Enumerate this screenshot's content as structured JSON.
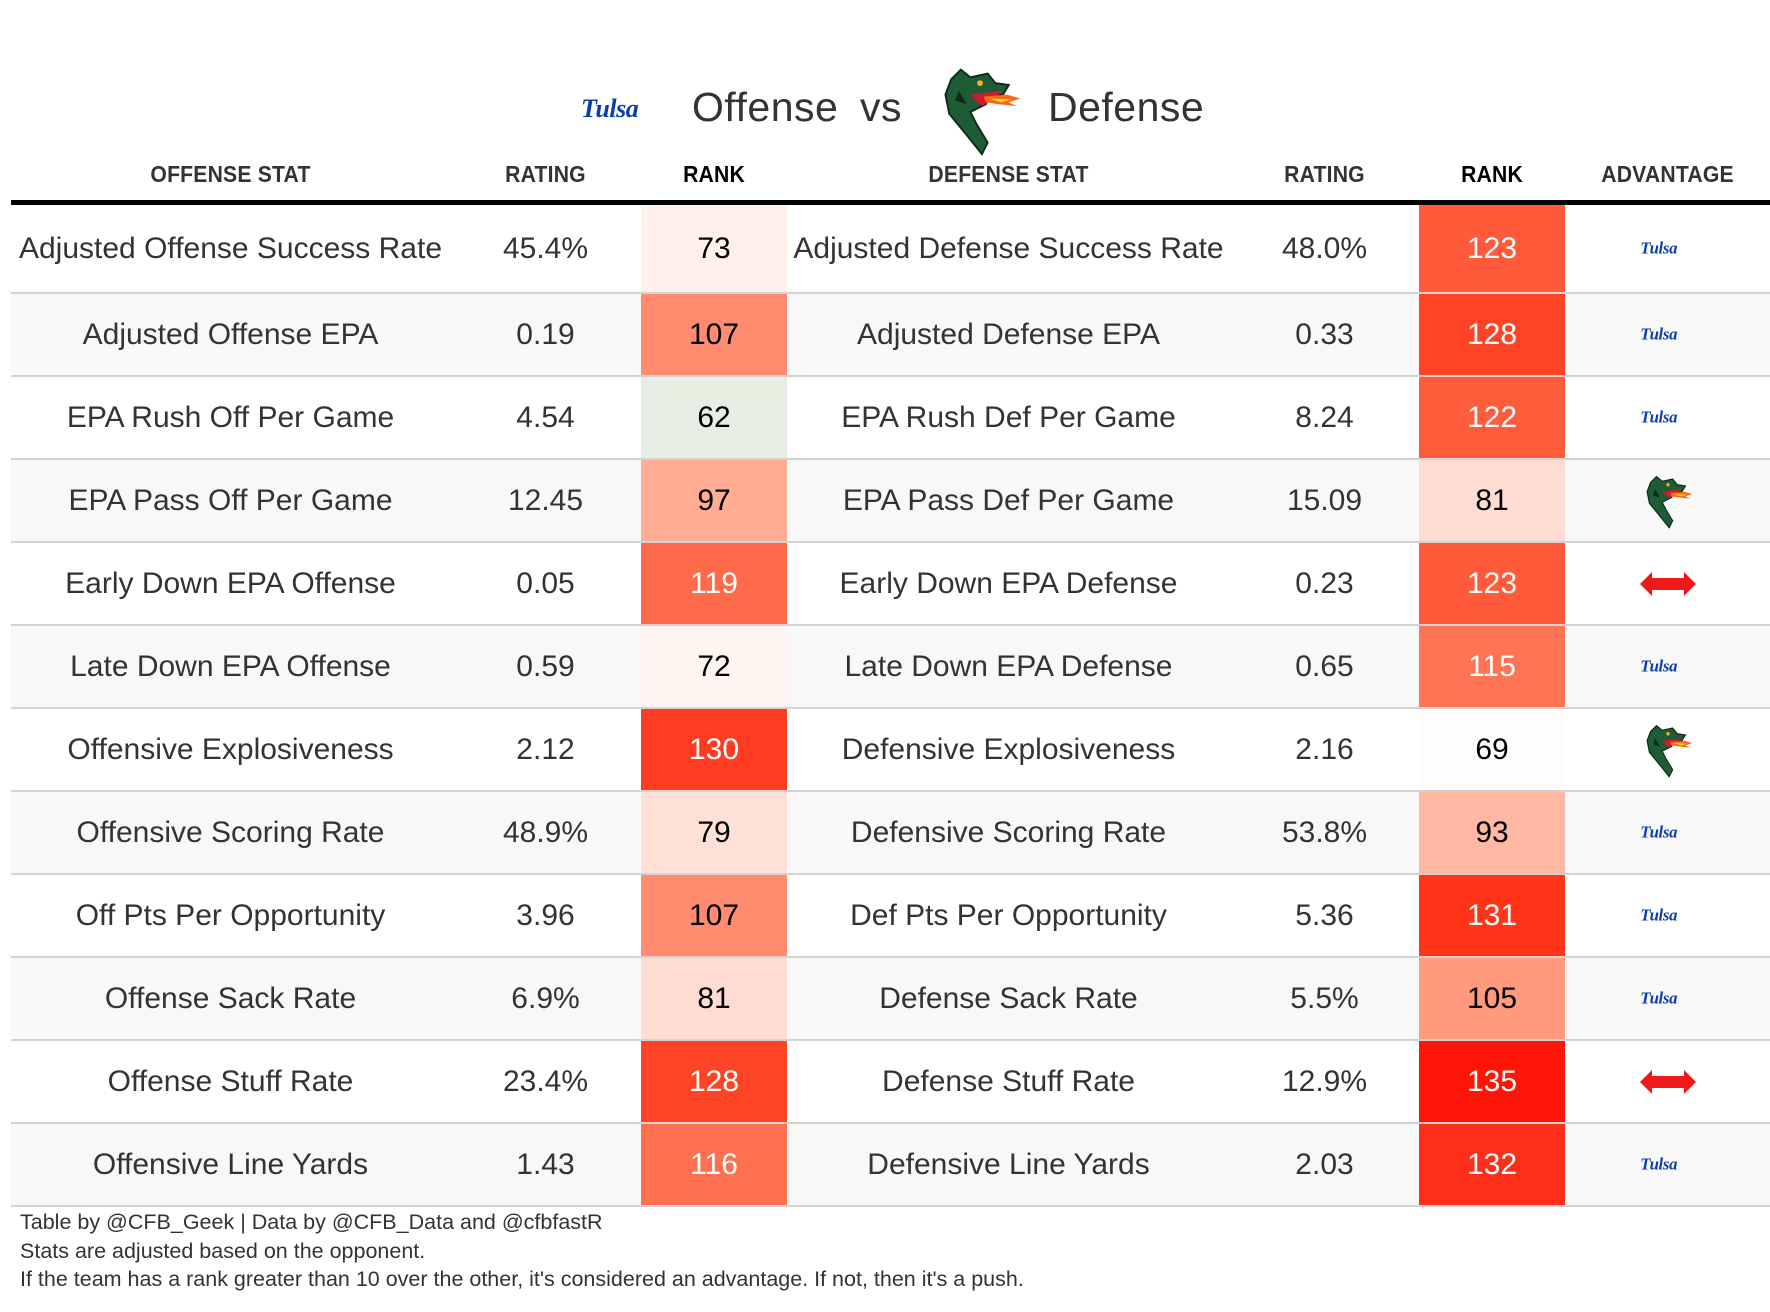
{
  "title": {
    "offense_team": "Tulsa",
    "offense_word": "Offense",
    "vs_word": "vs",
    "defense_team": "UAB",
    "defense_word": "Defense"
  },
  "headers": {
    "offense_stat": "OFFENSE STAT",
    "offense_rating": "RATING",
    "offense_rank": "RANK",
    "defense_stat": "DEFENSE STAT",
    "defense_rating": "RATING",
    "defense_rank": "RANK",
    "advantage": "ADVANTAGE"
  },
  "rows": [
    {
      "ostat": "Adjusted Offense Success Rate",
      "orating": "45.4%",
      "orank": "73",
      "orank_color": "#fff0ec",
      "orank_text": "light",
      "dstat": "Adjusted Defense Success Rate",
      "drating": "48.0%",
      "drank": "123",
      "drank_color": "#ff5a3a",
      "drank_text": "dark",
      "advantage": "tulsa"
    },
    {
      "ostat": "Adjusted Offense EPA",
      "orating": "0.19",
      "orank": "107",
      "orank_color": "#ff8c6e",
      "orank_text": "light",
      "dstat": "Adjusted Defense EPA",
      "drating": "0.33",
      "drank": "128",
      "drank_color": "#ff4426",
      "drank_text": "dark",
      "advantage": "tulsa"
    },
    {
      "ostat": "EPA Rush Off Per Game",
      "orating": "4.54",
      "orank": "62",
      "orank_color": "#e6eee3",
      "orank_text": "light",
      "dstat": "EPA Rush Def Per Game",
      "drating": "8.24",
      "drank": "122",
      "drank_color": "#ff5c3c",
      "drank_text": "dark",
      "advantage": "tulsa"
    },
    {
      "ostat": "EPA Pass Off Per Game",
      "orating": "12.45",
      "orank": "97",
      "orank_color": "#ffac92",
      "orank_text": "light",
      "dstat": "EPA Pass Def Per Game",
      "drating": "15.09",
      "drank": "81",
      "drank_color": "#ffdcd2",
      "drank_text": "light",
      "advantage": "uab"
    },
    {
      "ostat": "Early Down EPA Offense",
      "orating": "0.05",
      "orank": "119",
      "orank_color": "#ff6a4a",
      "orank_text": "dark",
      "dstat": "Early Down EPA Defense",
      "drating": "0.23",
      "drank": "123",
      "drank_color": "#ff5a3a",
      "drank_text": "dark",
      "advantage": "push"
    },
    {
      "ostat": "Late Down EPA Offense",
      "orating": "0.59",
      "orank": "72",
      "orank_color": "#fff5f0",
      "orank_text": "light",
      "dstat": "Late Down EPA Defense",
      "drating": "0.65",
      "drank": "115",
      "drank_color": "#ff7454",
      "drank_text": "dark",
      "advantage": "tulsa"
    },
    {
      "ostat": "Offensive Explosiveness",
      "orating": "2.12",
      "orank": "130",
      "orank_color": "#ff3c22",
      "orank_text": "dark",
      "dstat": "Defensive Explosiveness",
      "drating": "2.16",
      "drank": "69",
      "drank_color": "#fffdfb",
      "drank_text": "light",
      "advantage": "uab"
    },
    {
      "ostat": "Offensive Scoring Rate",
      "orating": "48.9%",
      "orank": "79",
      "orank_color": "#ffe0d6",
      "orank_text": "light",
      "dstat": "Defensive Scoring Rate",
      "drating": "53.8%",
      "drank": "93",
      "drank_color": "#ffb8a2",
      "drank_text": "light",
      "advantage": "tulsa"
    },
    {
      "ostat": "Off Pts Per Opportunity",
      "orating": "3.96",
      "orank": "107",
      "orank_color": "#ff8c6e",
      "orank_text": "light",
      "dstat": "Def Pts Per Opportunity",
      "drating": "5.36",
      "drank": "131",
      "drank_color": "#ff3418",
      "drank_text": "dark",
      "advantage": "tulsa"
    },
    {
      "ostat": "Offense Sack Rate",
      "orating": "6.9%",
      "orank": "81",
      "orank_color": "#ffdcd2",
      "orank_text": "light",
      "dstat": "Defense Sack Rate",
      "drating": "5.5%",
      "drank": "105",
      "drank_color": "#ff9a7c",
      "drank_text": "light",
      "advantage": "tulsa"
    },
    {
      "ostat": "Offense Stuff Rate",
      "orating": "23.4%",
      "orank": "128",
      "orank_color": "#ff4426",
      "orank_text": "dark",
      "dstat": "Defense Stuff Rate",
      "drating": "12.9%",
      "drank": "135",
      "drank_color": "#ff1408",
      "drank_text": "dark",
      "advantage": "push"
    },
    {
      "ostat": "Offensive Line Yards",
      "orating": "1.43",
      "orank": "116",
      "orank_color": "#ff7050",
      "orank_text": "dark",
      "dstat": "Defensive Line Yards",
      "drating": "2.03",
      "drank": "132",
      "drank_color": "#ff2e1a",
      "drank_text": "dark",
      "advantage": "tulsa"
    }
  ],
  "footnotes": [
    "Table by @CFB_Geek | Data by @CFB_Data and @cfbfastR",
    "Stats are adjusted based on the opponent.",
    "If the team has a rank greater than 10 over the other, it's considered an advantage. If not, then it's a push."
  ],
  "colors": {
    "tulsa_blue": "#0b3ea8",
    "uab_green": "#1e5c36",
    "push_red": "#ee1a1a"
  }
}
